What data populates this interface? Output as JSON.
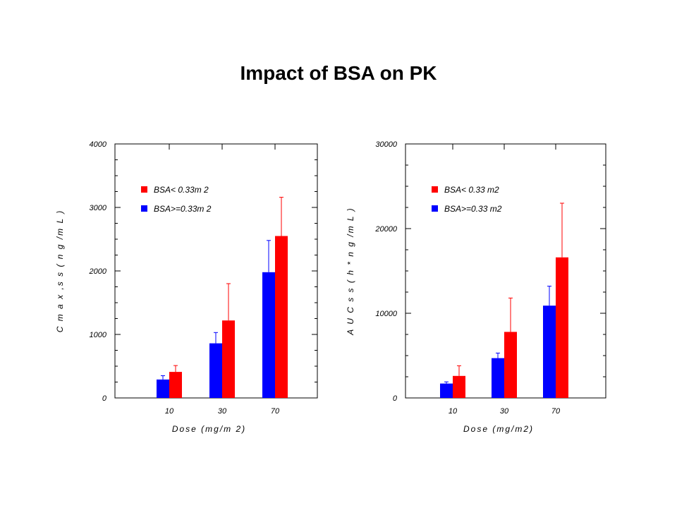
{
  "page": {
    "title": "Impact of BSA on PK"
  },
  "colors": {
    "red": "#ff0000",
    "blue": "#0000ff",
    "axis": "#000000"
  },
  "chart_data": [
    {
      "type": "bar",
      "categories": [
        "10",
        "30",
        "70"
      ],
      "ylim": [
        0,
        4000
      ],
      "yticks": [
        0,
        1000,
        2000,
        3000,
        4000
      ],
      "ylabel": "C m a x ,s s  ( n g /m L )",
      "xlabel": "Dose (mg/m 2)",
      "legend": {
        "placement": "top-left"
      },
      "series": [
        {
          "name": "BSA>=0.33m 2",
          "color": "#0000ff",
          "values": [
            290,
            860,
            1980
          ],
          "errors": [
            60,
            170,
            500
          ]
        },
        {
          "name": "BSA< 0.33m 2",
          "color": "#ff0000",
          "values": [
            410,
            1220,
            2550
          ],
          "errors": [
            100,
            580,
            610
          ]
        }
      ]
    },
    {
      "type": "bar",
      "categories": [
        "10",
        "30",
        "70"
      ],
      "ylim": [
        0,
        30000
      ],
      "yticks": [
        0,
        10000,
        20000,
        30000
      ],
      "ylabel": "A U C s s  ( h * n g /m L )",
      "xlabel": "Dose (mg/m2)",
      "legend": {
        "placement": "top-left"
      },
      "series": [
        {
          "name": "BSA>=0.33 m2",
          "color": "#0000ff",
          "values": [
            1700,
            4700,
            10900
          ],
          "errors": [
            200,
            600,
            2300
          ]
        },
        {
          "name": "BSA< 0.33 m2",
          "color": "#ff0000",
          "values": [
            2600,
            7800,
            16600
          ],
          "errors": [
            1200,
            4000,
            6400
          ]
        }
      ]
    }
  ]
}
